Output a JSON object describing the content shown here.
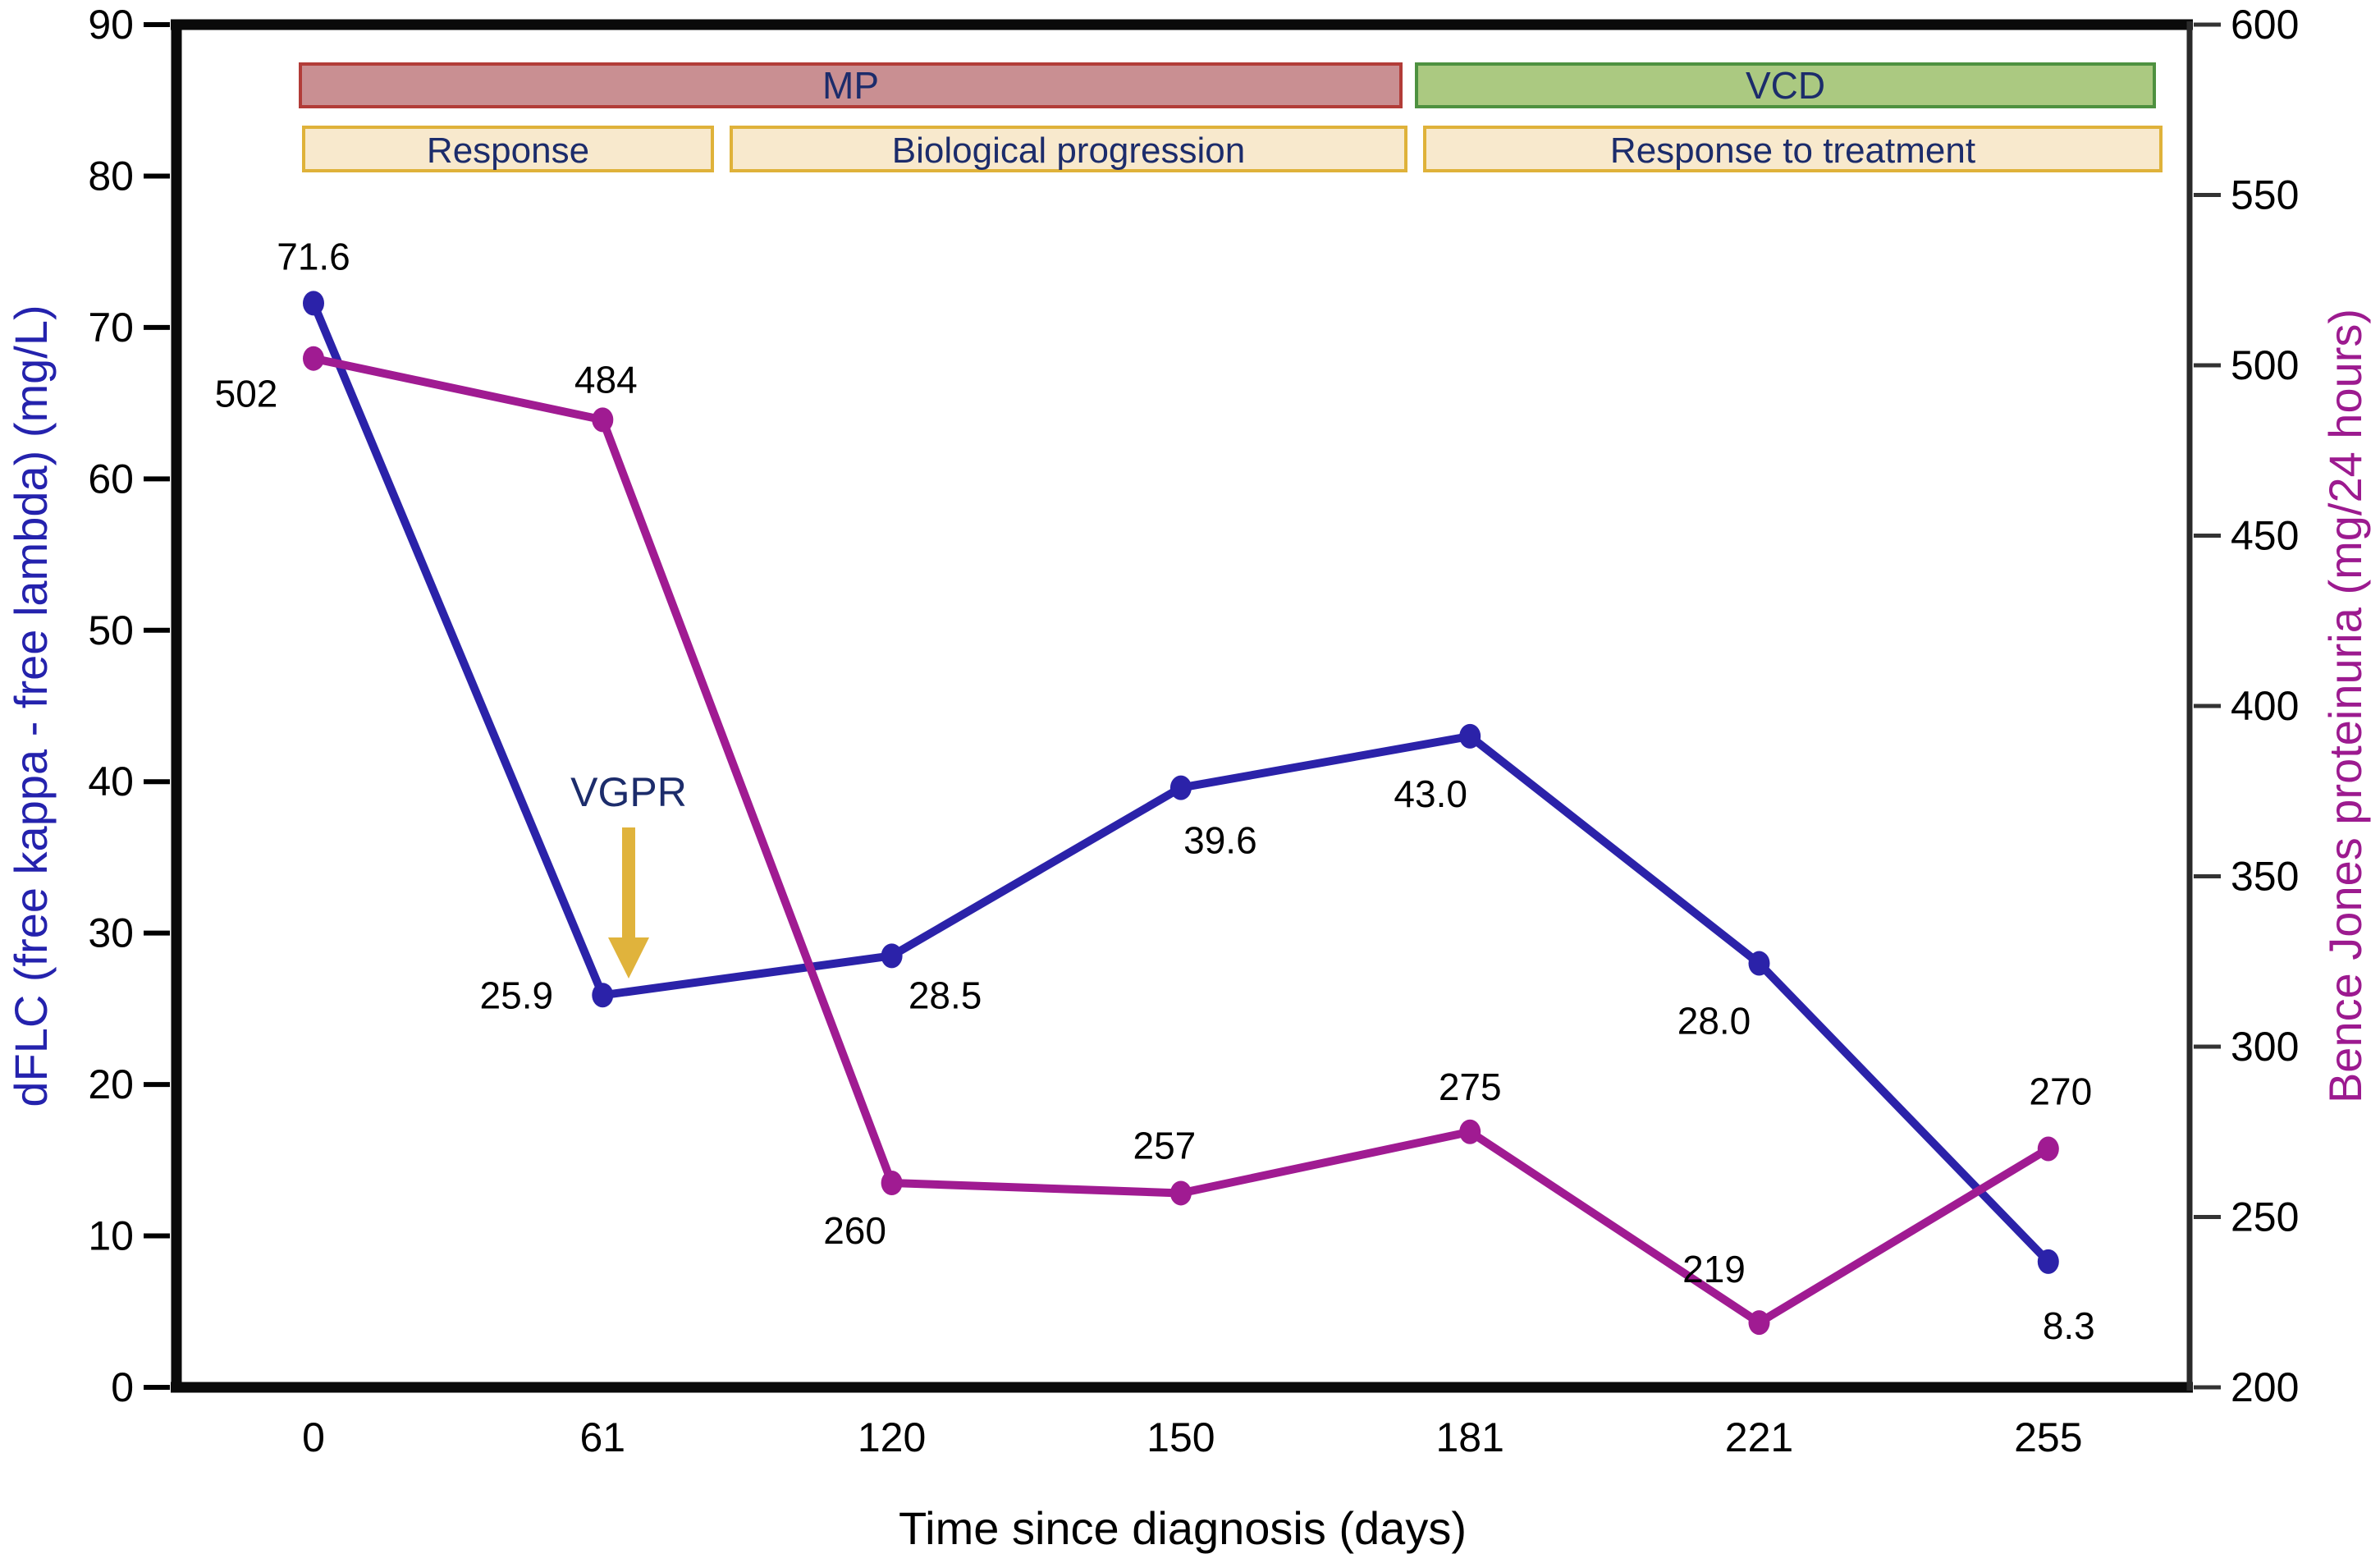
{
  "chart_data": {
    "type": "line",
    "xlabel": "Time since diagnosis (days)",
    "x_categories": [
      "0",
      "61",
      "120",
      "150",
      "181",
      "221",
      "255"
    ],
    "axes": {
      "left": {
        "label": "dFLC (free kappa - free lambda) (mg/L)",
        "min": 0,
        "max": 90,
        "tick_step": 10,
        "tick_labels": [
          "0",
          "10",
          "20",
          "30",
          "40",
          "50",
          "60",
          "70",
          "80",
          "90"
        ],
        "color": "#2422ad"
      },
      "right": {
        "label": "Bence Jones proteinuria (mg/24 hours)",
        "min": 200,
        "max": 600,
        "tick_step": 50,
        "tick_labels": [
          "200",
          "250",
          "300",
          "350",
          "400",
          "450",
          "500",
          "550",
          "600"
        ],
        "color": "#9c1a8f"
      }
    },
    "series": [
      {
        "name": "dFLC",
        "axis": "left",
        "color": "#2b22a9",
        "x_days": [
          0,
          61,
          120,
          150,
          181,
          221,
          255
        ],
        "values": [
          71.6,
          25.9,
          28.5,
          39.6,
          43.0,
          28.0,
          8.3
        ],
        "point_labels": [
          "71.6",
          "25.9",
          "28.5",
          "39.6",
          "43.0",
          "28.0",
          "8.3"
        ],
        "label_offsets": [
          [
            0,
            -57
          ],
          [
            -105,
            0
          ],
          [
            65,
            48
          ],
          [
            48,
            64
          ],
          [
            -48,
            70
          ],
          [
            -55,
            70
          ],
          [
            25,
            78
          ]
        ]
      },
      {
        "name": "Bence Jones proteinuria",
        "axis": "right",
        "color": "#a01b92",
        "x_days": [
          0,
          61,
          120,
          150,
          181,
          221,
          255
        ],
        "values": [
          502,
          484,
          260,
          257,
          275,
          219,
          270
        ],
        "point_labels": [
          "502",
          "484",
          "260",
          "257",
          "275",
          "219",
          "270"
        ],
        "label_offsets": [
          [
            -82,
            43
          ],
          [
            4,
            -49
          ],
          [
            -45,
            58
          ],
          [
            -20,
            -58
          ],
          [
            0,
            -55
          ],
          [
            -55,
            -65
          ],
          [
            15,
            -70
          ]
        ]
      }
    ],
    "treatment_bars": [
      {
        "label": "MP",
        "fill": "#c98f92",
        "border": "#b23c38",
        "x0": 366,
        "x1": 1707
      },
      {
        "label": "VCD",
        "fill": "#abc981",
        "border": "#4e9140",
        "x0": 1726,
        "x1": 2625
      }
    ],
    "phase_bars": [
      {
        "label": "Response",
        "x0": 370,
        "x1": 868
      },
      {
        "label": "Biological progression",
        "x0": 891,
        "x1": 1713
      },
      {
        "label": "Response to treatment",
        "x0": 1736,
        "x1": 2633
      }
    ],
    "phase_style": {
      "fill": "#f8e9cd",
      "border": "#dfb23a"
    },
    "bar_text_color": "#1c2c6b",
    "annotation": {
      "text": "VGPR",
      "text_color": "#1c2c6b",
      "arrow_color": "#e0b33c",
      "x": 766,
      "text_y": 965,
      "arrow_top": 1008,
      "arrow_tip": 1192
    }
  }
}
